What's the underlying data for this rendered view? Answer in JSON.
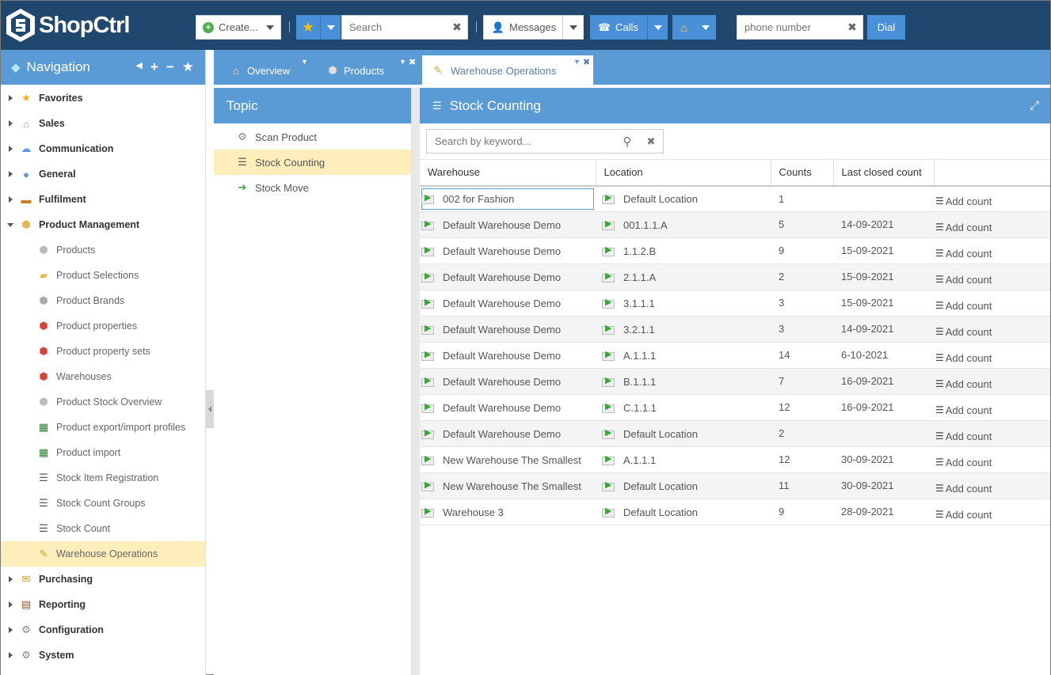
{
  "app": {
    "name": "ShopCtrl"
  },
  "toolbar": {
    "create_label": "Create...",
    "search_placeholder": "Search",
    "messages_label": "Messages",
    "calls_label": "Calls",
    "phone_placeholder": "phone number",
    "dial_label": "Dial"
  },
  "nav": {
    "title": "Navigation",
    "items": [
      {
        "label": "Favorites",
        "level": 1,
        "icon": "star-icon"
      },
      {
        "label": "Sales",
        "level": 1,
        "icon": "basket-icon"
      },
      {
        "label": "Communication",
        "level": 1,
        "icon": "chat-icon"
      },
      {
        "label": "General",
        "level": 1,
        "icon": "dot-icon"
      },
      {
        "label": "Fulfilment",
        "level": 1,
        "icon": "box-icon"
      },
      {
        "label": "Product Management",
        "level": 1,
        "icon": "package-icon",
        "expanded": true
      },
      {
        "label": "Products",
        "level": 2,
        "icon": "cube-icon"
      },
      {
        "label": "Product Selections",
        "level": 2,
        "icon": "folder-icon"
      },
      {
        "label": "Product Brands",
        "level": 2,
        "icon": "cube-search-icon"
      },
      {
        "label": "Product properties",
        "level": 2,
        "icon": "properties-icon"
      },
      {
        "label": "Product property sets",
        "level": 2,
        "icon": "properties-icon"
      },
      {
        "label": "Warehouses",
        "level": 2,
        "icon": "warehouse-icon"
      },
      {
        "label": "Product Stock Overview",
        "level": 2,
        "icon": "cube-icon"
      },
      {
        "label": "Product export/import profiles",
        "level": 2,
        "icon": "excel-icon"
      },
      {
        "label": "Product import",
        "level": 2,
        "icon": "excel-icon"
      },
      {
        "label": "Stock Item Registration",
        "level": 2,
        "icon": "list-icon"
      },
      {
        "label": "Stock Count Groups",
        "level": 2,
        "icon": "list-icon"
      },
      {
        "label": "Stock Count",
        "level": 2,
        "icon": "list-icon"
      },
      {
        "label": "Warehouse Operations",
        "level": 2,
        "icon": "notepad-icon",
        "active": true
      },
      {
        "label": "Purchasing",
        "level": 1,
        "icon": "purchase-icon"
      },
      {
        "label": "Reporting",
        "level": 1,
        "icon": "report-icon"
      },
      {
        "label": "Configuration",
        "level": 1,
        "icon": "gear-icon"
      },
      {
        "label": "System",
        "level": 1,
        "icon": "gear-icon"
      }
    ]
  },
  "tabs": [
    {
      "label": "Overview",
      "icon": "home-icon"
    },
    {
      "label": "Products",
      "icon": "cube-icon"
    },
    {
      "label": "Warehouse Operations",
      "icon": "notepad-icon",
      "active": true
    }
  ],
  "topic": {
    "title": "Topic",
    "items": [
      {
        "label": "Scan Product",
        "icon": "gear-icon"
      },
      {
        "label": "Stock Counting",
        "icon": "list-icon",
        "active": true
      },
      {
        "label": "Stock Move",
        "icon": "arrow-right-icon"
      }
    ]
  },
  "main": {
    "title": "Stock Counting",
    "search_placeholder": "Search by keyword...",
    "columns": [
      "Warehouse",
      "Location",
      "Counts",
      "Last closed count",
      ""
    ],
    "add_label": "Add count",
    "rows": [
      {
        "warehouse": "002 for Fashion",
        "location": "Default Location",
        "counts": "1",
        "last": ""
      },
      {
        "warehouse": "Default Warehouse Demo",
        "location": "001.1.1.A",
        "counts": "5",
        "last": "14-09-2021"
      },
      {
        "warehouse": "Default Warehouse Demo",
        "location": "1.1.2.B",
        "counts": "9",
        "last": "15-09-2021"
      },
      {
        "warehouse": "Default Warehouse Demo",
        "location": "2.1.1.A",
        "counts": "2",
        "last": "15-09-2021"
      },
      {
        "warehouse": "Default Warehouse Demo",
        "location": "3.1.1.1",
        "counts": "3",
        "last": "15-09-2021"
      },
      {
        "warehouse": "Default Warehouse Demo",
        "location": "3.2.1.1",
        "counts": "3",
        "last": "14-09-2021"
      },
      {
        "warehouse": "Default Warehouse Demo",
        "location": "A.1.1.1",
        "counts": "14",
        "last": "6-10-2021"
      },
      {
        "warehouse": "Default Warehouse Demo",
        "location": "B.1.1.1",
        "counts": "7",
        "last": "16-09-2021"
      },
      {
        "warehouse": "Default Warehouse Demo",
        "location": "C.1.1.1",
        "counts": "12",
        "last": "16-09-2021"
      },
      {
        "warehouse": "Default Warehouse Demo",
        "location": "Default Location",
        "counts": "2",
        "last": ""
      },
      {
        "warehouse": "New Warehouse The Smallest",
        "location": "A.1.1.1",
        "counts": "12",
        "last": "30-09-2021"
      },
      {
        "warehouse": "New Warehouse The Smallest",
        "location": "Default Location",
        "counts": "11",
        "last": "30-09-2021"
      },
      {
        "warehouse": "Warehouse 3",
        "location": "Default Location",
        "counts": "9",
        "last": "28-09-2021"
      }
    ]
  }
}
